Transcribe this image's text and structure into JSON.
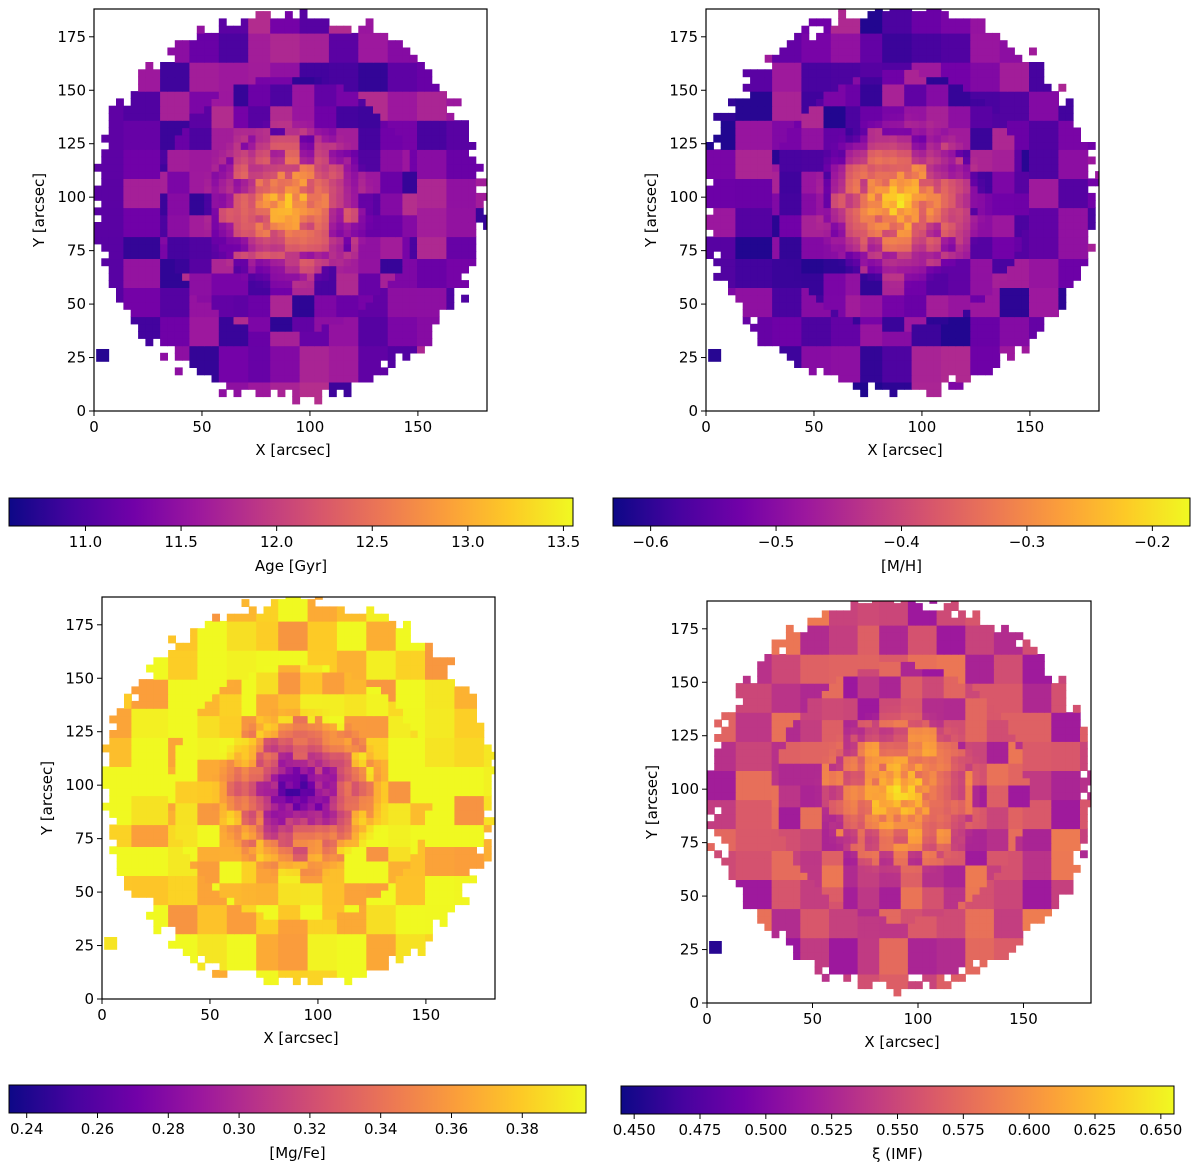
{
  "chart_data": [
    {
      "type": "heatmap",
      "xlabel": "X [arcsec]",
      "ylabel": "Y [arcsec]",
      "xlim": [
        0,
        182
      ],
      "ylim": [
        0,
        188
      ],
      "xticks": [
        0,
        50,
        100,
        150
      ],
      "yticks": [
        0,
        25,
        50,
        75,
        100,
        125,
        150,
        175
      ],
      "map_center": [
        88,
        95
      ],
      "colorbar": {
        "label": "Age [Gyr]",
        "range": [
          10.6,
          13.55
        ],
        "ticks": [
          "11.0",
          "11.5",
          "12.0",
          "12.5",
          "13.0",
          "13.5"
        ],
        "tick_values": [
          11.0,
          11.5,
          12.0,
          12.5,
          13.0,
          13.5
        ],
        "colormap": "plasma",
        "center_value": 13.2,
        "outer_value": 11.3
      }
    },
    {
      "type": "heatmap",
      "xlabel": "X [arcsec]",
      "ylabel": "Y [arcsec]",
      "xlim": [
        0,
        182
      ],
      "ylim": [
        0,
        188
      ],
      "xticks": [
        0,
        50,
        100,
        150
      ],
      "yticks": [
        0,
        25,
        50,
        75,
        100,
        125,
        150,
        175
      ],
      "map_center": [
        88,
        97
      ],
      "colorbar": {
        "label": "[M/H]",
        "range": [
          -0.63,
          -0.17
        ],
        "ticks": [
          "−0.6",
          "−0.5",
          "−0.4",
          "−0.3",
          "−0.2"
        ],
        "tick_values": [
          -0.6,
          -0.5,
          -0.4,
          -0.3,
          -0.2
        ],
        "colormap": "plasma",
        "center_value": -0.2,
        "outer_value": -0.53
      }
    },
    {
      "type": "heatmap",
      "xlabel": "X [arcsec]",
      "ylabel": "Y [arcsec]",
      "xlim": [
        0,
        182
      ],
      "ylim": [
        0,
        188
      ],
      "xticks": [
        0,
        50,
        100,
        150
      ],
      "yticks": [
        0,
        25,
        50,
        75,
        100,
        125,
        150,
        175
      ],
      "map_center": [
        90,
        95
      ],
      "colorbar": {
        "label": "[Mg/Fe]",
        "range": [
          0.235,
          0.398
        ],
        "ticks": [
          "0.24",
          "0.26",
          "0.28",
          "0.30",
          "0.32",
          "0.34",
          "0.36",
          "0.38"
        ],
        "tick_values": [
          0.24,
          0.26,
          0.28,
          0.3,
          0.32,
          0.34,
          0.36,
          0.38
        ],
        "colormap": "plasma",
        "center_value": 0.245,
        "outer_value": 0.385
      }
    },
    {
      "type": "heatmap",
      "xlabel": "X [arcsec]",
      "ylabel": "Y [arcsec]",
      "xlim": [
        0,
        182
      ],
      "ylim": [
        0,
        188
      ],
      "xticks": [
        0,
        50,
        100,
        150
      ],
      "yticks": [
        0,
        25,
        50,
        75,
        100,
        125,
        150,
        175
      ],
      "map_center": [
        90,
        97
      ],
      "colorbar": {
        "label": "ξ (IMF)",
        "range": [
          0.445,
          0.655
        ],
        "ticks": [
          "0.450",
          "0.475",
          "0.500",
          "0.525",
          "0.550",
          "0.575",
          "0.600",
          "0.625",
          "0.650"
        ],
        "tick_values": [
          0.45,
          0.475,
          0.5,
          0.525,
          0.55,
          0.575,
          0.6,
          0.625,
          0.65
        ],
        "colormap": "plasma",
        "center_value": 0.63,
        "outer_value": 0.55
      }
    }
  ]
}
